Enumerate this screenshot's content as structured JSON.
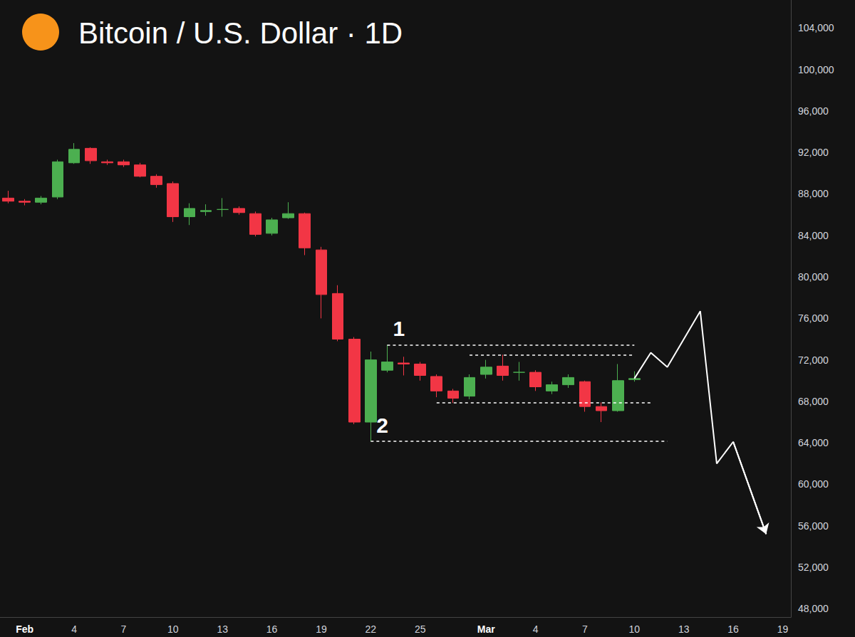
{
  "chart_data": {
    "type": "candlestick",
    "title": "Bitcoin / U.S. Dollar · 1D",
    "categories": [
      null,
      "Feb",
      null,
      null,
      "4",
      null,
      null,
      "7",
      null,
      null,
      "10",
      null,
      null,
      "13",
      null,
      null,
      "16",
      null,
      null,
      "19",
      null,
      null,
      "22",
      null,
      null,
      "25",
      null,
      null,
      null,
      "Mar",
      null,
      null,
      "4",
      null,
      null,
      "7",
      null,
      null,
      "10",
      null,
      null,
      "13",
      null,
      null,
      "16",
      null,
      null,
      "19"
    ],
    "open": [
      87600,
      87300,
      87200,
      87700,
      91000,
      92400,
      91100,
      91100,
      90800,
      89700,
      89000,
      85800,
      86300,
      86500,
      86600,
      86100,
      84200,
      85700,
      86100,
      82600,
      78400,
      74000,
      66000,
      71000,
      71700,
      71600,
      70400,
      69000,
      68500,
      70600,
      71400,
      70800,
      70800,
      69000,
      69600,
      69900,
      67500,
      67100,
      70100,
      null,
      null,
      null,
      null,
      null,
      null,
      null,
      null,
      null
    ],
    "high": [
      88300,
      87500,
      87800,
      91300,
      92900,
      92500,
      91300,
      91300,
      91000,
      89900,
      89200,
      87100,
      87000,
      87600,
      86800,
      86300,
      85700,
      87200,
      86200,
      82900,
      79200,
      74200,
      72800,
      73450,
      72300,
      71800,
      70600,
      69200,
      70600,
      72000,
      72500,
      71800,
      71000,
      69900,
      70600,
      70000,
      67900,
      71600,
      70900,
      null,
      null,
      null,
      null,
      null,
      null,
      null,
      null,
      null
    ],
    "low": [
      87100,
      86900,
      87000,
      87500,
      90900,
      90900,
      90800,
      90600,
      89600,
      88600,
      85300,
      85000,
      85900,
      85800,
      86000,
      83900,
      84000,
      85600,
      82100,
      76000,
      73800,
      65800,
      64150,
      70800,
      70500,
      70000,
      68400,
      67850,
      68200,
      70200,
      70000,
      70000,
      69000,
      68700,
      69300,
      67000,
      66000,
      67000,
      69900,
      null,
      null,
      null,
      null,
      null,
      null,
      null,
      null,
      null
    ],
    "close": [
      87300,
      87200,
      87600,
      91100,
      92300,
      91200,
      91000,
      90800,
      89700,
      88900,
      85800,
      86600,
      86400,
      86500,
      86200,
      84100,
      85500,
      86100,
      82800,
      78300,
      74000,
      66000,
      72000,
      71800,
      71600,
      70500,
      69000,
      68300,
      70300,
      71300,
      70500,
      70800,
      69400,
      69600,
      70300,
      67500,
      67100,
      70000,
      70200,
      null,
      null,
      null,
      null,
      null,
      null,
      null,
      null,
      null
    ],
    "ylim": [
      47200,
      106700
    ],
    "yticks": [
      {
        "value": 48000,
        "label": "48,000"
      },
      {
        "value": 52000,
        "label": "52,000"
      },
      {
        "value": 56000,
        "label": "56,000"
      },
      {
        "value": 60000,
        "label": "60,000"
      },
      {
        "value": 64000,
        "label": "64,000"
      },
      {
        "value": 68000,
        "label": "68,000"
      },
      {
        "value": 72000,
        "label": "72,000"
      },
      {
        "value": 76000,
        "label": "76,000"
      },
      {
        "value": 80000,
        "label": "80,000"
      },
      {
        "value": 84000,
        "label": "84,000"
      },
      {
        "value": 88000,
        "label": "88,000"
      },
      {
        "value": 92000,
        "label": "92,000"
      },
      {
        "value": 96000,
        "label": "96,000"
      },
      {
        "value": 100000,
        "label": "100,000"
      },
      {
        "value": 104000,
        "label": "104,000"
      }
    ],
    "grid": false,
    "levels": [
      {
        "value": 73450,
        "x_start": 23,
        "x_end": 38,
        "label": "1",
        "line_style": "dashed",
        "color": "#ffffff"
      },
      {
        "value": 72500,
        "x_start": 28,
        "x_end": 38,
        "line_style": "dashed",
        "color": "#ffffff"
      },
      {
        "value": 67850,
        "x_start": 26,
        "x_end": 39,
        "line_style": "dashed",
        "color": "#ffffff"
      },
      {
        "value": 64150,
        "x_start": 22,
        "x_end": 40,
        "label": "2",
        "line_style": "dashed",
        "color": "#ffffff"
      }
    ],
    "projection": {
      "x": [
        38,
        39,
        40,
        42,
        43,
        44,
        46
      ],
      "values": [
        70200,
        72700,
        71300,
        76700,
        62000,
        64100,
        55200
      ],
      "color": "#ffffff",
      "line_style": "solid",
      "marker": "arrow"
    }
  }
}
